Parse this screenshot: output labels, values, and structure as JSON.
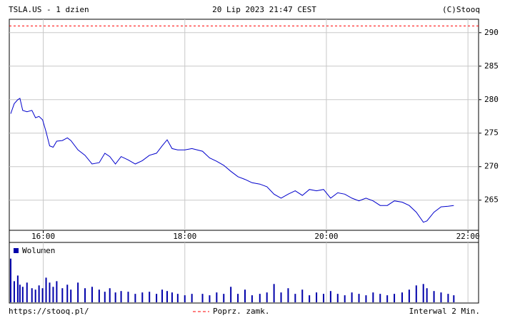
{
  "chart_data": {
    "type": "line",
    "title": "TSLA.US - 1 dzien",
    "subtitle": "20 Lip 2023 21:47 CEST",
    "source": "(C)Stooq",
    "url": "https://stooq.pl/",
    "interval": "Interwal 2 Min.",
    "color": "#0000cc",
    "grid": true,
    "x": [
      15.54,
      15.59,
      15.64,
      15.67,
      15.71,
      15.77,
      15.84,
      15.89,
      15.94,
      15.99,
      16.04,
      16.09,
      16.14,
      16.19,
      16.27,
      16.34,
      16.39,
      16.49,
      16.59,
      16.69,
      16.79,
      16.87,
      16.94,
      17.02,
      17.1,
      17.2,
      17.3,
      17.4,
      17.5,
      17.6,
      17.68,
      17.75,
      17.82,
      17.9,
      18.0,
      18.1,
      18.25,
      18.35,
      18.45,
      18.55,
      18.65,
      18.75,
      18.85,
      18.95,
      19.06,
      19.16,
      19.26,
      19.36,
      19.46,
      19.56,
      19.66,
      19.76,
      19.86,
      19.96,
      20.06,
      20.16,
      20.26,
      20.36,
      20.46,
      20.56,
      20.66,
      20.76,
      20.86,
      20.96,
      21.07,
      21.17,
      21.27,
      21.37,
      21.42,
      21.52,
      21.62,
      21.72,
      21.8
    ],
    "values": [
      277.9,
      279.4,
      280.0,
      280.2,
      278.4,
      278.2,
      278.4,
      277.3,
      277.5,
      277.0,
      275.2,
      273.1,
      272.9,
      273.8,
      273.9,
      274.3,
      273.9,
      272.5,
      271.7,
      270.4,
      270.6,
      272.0,
      271.5,
      270.4,
      271.5,
      271.0,
      270.4,
      270.9,
      271.7,
      272.0,
      273.1,
      274.0,
      272.7,
      272.5,
      272.5,
      272.7,
      272.3,
      271.3,
      270.8,
      270.2,
      269.3,
      268.5,
      268.1,
      267.6,
      267.4,
      267.0,
      265.9,
      265.3,
      265.9,
      266.4,
      265.7,
      266.6,
      266.4,
      266.6,
      265.3,
      266.1,
      265.9,
      265.3,
      264.9,
      265.3,
      264.9,
      264.2,
      264.2,
      264.9,
      264.7,
      264.2,
      263.2,
      261.7,
      261.9,
      263.2,
      264.0,
      264.1,
      264.2
    ],
    "xlim": [
      15.52,
      22.15
    ],
    "xticks": [
      {
        "value": 16,
        "label": "16:00"
      },
      {
        "value": 18,
        "label": "18:00"
      },
      {
        "value": 20,
        "label": "20:00"
      },
      {
        "value": 22,
        "label": "22:00"
      }
    ],
    "ylim": [
      260.5,
      292
    ],
    "yticks": [
      265,
      270,
      275,
      280,
      285,
      290
    ],
    "prev_close": {
      "label": "Poprz. zamk.",
      "value": 291,
      "color": "#ff0000"
    },
    "volume": {
      "name": "Wolumen",
      "color": "#0000aa",
      "ylim": [
        0,
        85
      ],
      "values": [
        62,
        30,
        38,
        25,
        22,
        28,
        20,
        18,
        24,
        20,
        35,
        28,
        22,
        30,
        20,
        25,
        18,
        28,
        20,
        22,
        18,
        15,
        20,
        14,
        16,
        15,
        12,
        14,
        15,
        12,
        18,
        16,
        14,
        12,
        10,
        12,
        12,
        10,
        14,
        12,
        22,
        12,
        18,
        10,
        12,
        14,
        26,
        14,
        20,
        12,
        18,
        10,
        14,
        12,
        16,
        12,
        10,
        14,
        12,
        10,
        14,
        12,
        10,
        12,
        14,
        18,
        24,
        26,
        20,
        16,
        14,
        12,
        10
      ]
    }
  }
}
